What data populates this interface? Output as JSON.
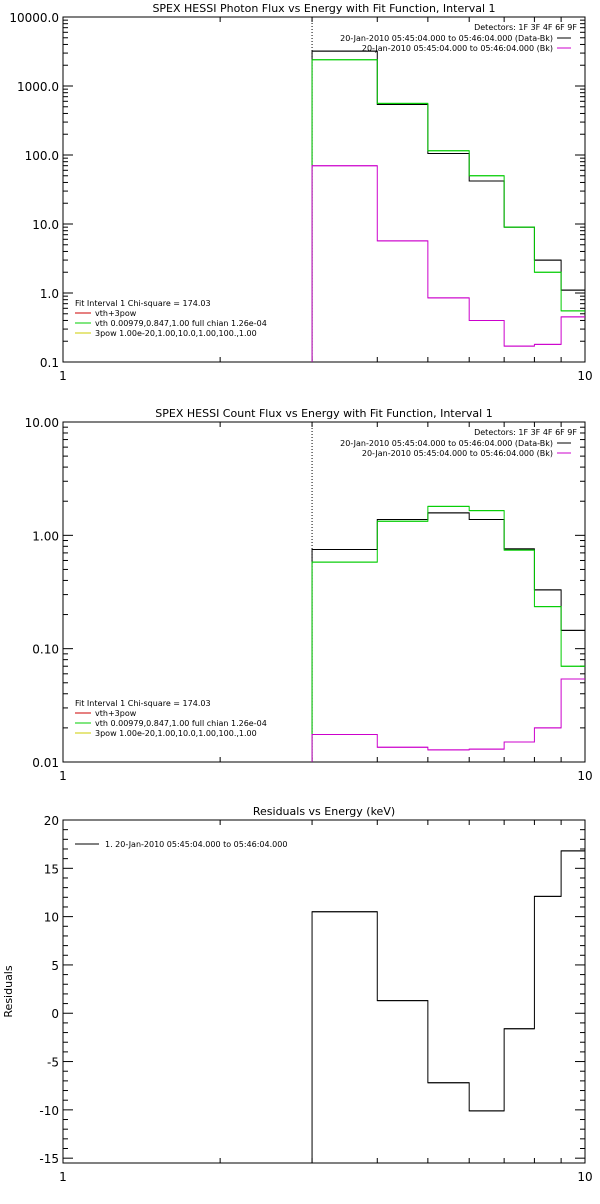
{
  "colors": {
    "data_minus_bk": "#000000",
    "bk": "#cc00cc",
    "fit_total": "#cc0000",
    "vth": "#00cc00",
    "pow": "#cccc00"
  },
  "chart_data": [
    {
      "type": "line",
      "title": "SPEX HESSI Photon Flux vs Energy with Fit Function, Interval 1",
      "xlabel": "",
      "ylabel": "",
      "x_scale": "log",
      "y_scale": "log",
      "xlim": [
        1,
        10
      ],
      "ylim": [
        0.1,
        10000
      ],
      "x_ticks": [
        "1",
        "10"
      ],
      "y_ticks": [
        "0.1",
        "1.0",
        "10.0",
        "100.0",
        "1000.0",
        "10000.0"
      ],
      "vline_x": 3.0,
      "bin_edges": [
        3.0,
        4.0,
        5.0,
        6.0,
        7.0,
        8.0,
        9.0,
        10.0
      ],
      "detectors": "Detectors: 1F 3F 4F 6F 9F",
      "legend": [
        {
          "name": "20-Jan-2010 05:45:04.000 to 05:46:04.000 (Data-Bk)",
          "color": "#000000"
        },
        {
          "name": "20-Jan-2010 05:45:04.000 to 05:46:04.000 (Bk)",
          "color": "#cc00cc"
        }
      ],
      "fit_legend_title": "Fit Interval 1    Chi-square = 174.03",
      "fit_legend": [
        {
          "name": "vth+3pow",
          "color": "#cc0000"
        },
        {
          "name": "vth 0.00979,0.847,1.00  full chian 1.26e-04",
          "color": "#00cc00"
        },
        {
          "name": "3pow 1.00e-20,1.00,10.0,1.00,100.,1.00",
          "color": "#cccc00"
        }
      ],
      "series": [
        {
          "name": "20-Jan-2010 05:45:04.000 to 05:46:04.000 (Data-Bk)",
          "color": "#000000",
          "values": [
            3200,
            540,
            105,
            42,
            9,
            3.0,
            1.1
          ]
        },
        {
          "name": "vth 0.00979,0.847,1.00  full chian 1.26e-04",
          "color": "#00cc00",
          "values": [
            2400,
            560,
            115,
            50,
            9,
            2.0,
            0.55
          ]
        },
        {
          "name": "20-Jan-2010 05:45:04.000 to 05:46:04.000 (Bk)",
          "color": "#cc00cc",
          "values": [
            70,
            5.7,
            0.85,
            0.4,
            0.17,
            0.18,
            0.45
          ]
        }
      ]
    },
    {
      "type": "line",
      "title": "SPEX HESSI Count Flux vs Energy with Fit Function, Interval 1",
      "xlabel": "",
      "ylabel": "",
      "x_scale": "log",
      "y_scale": "log",
      "xlim": [
        1,
        10
      ],
      "ylim": [
        0.01,
        10
      ],
      "x_ticks": [
        "1",
        "10"
      ],
      "y_ticks": [
        "0.01",
        "0.10",
        "1.00",
        "10.00"
      ],
      "vline_x": 3.0,
      "bin_edges": [
        3.0,
        4.0,
        5.0,
        6.0,
        7.0,
        8.0,
        9.0,
        10.0
      ],
      "detectors": "Detectors: 1F 3F 4F 6F 9F",
      "legend": [
        {
          "name": "20-Jan-2010 05:45:04.000 to 05:46:04.000 (Data-Bk)",
          "color": "#000000"
        },
        {
          "name": "20-Jan-2010 05:45:04.000 to 05:46:04.000 (Bk)",
          "color": "#cc00cc"
        }
      ],
      "fit_legend_title": "Fit Interval 1    Chi-square = 174.03",
      "fit_legend": [
        {
          "name": "vth+3pow",
          "color": "#cc0000"
        },
        {
          "name": "vth 0.00979,0.847,1.00  full chian 1.26e-04",
          "color": "#00cc00"
        },
        {
          "name": "3pow 1.00e-20,1.00,10.0,1.00,100.,1.00",
          "color": "#cccc00"
        }
      ],
      "series": [
        {
          "name": "20-Jan-2010 05:45:04.000 to 05:46:04.000 (Data-Bk)",
          "color": "#000000",
          "values": [
            0.75,
            1.38,
            1.58,
            1.38,
            0.76,
            0.33,
            0.145
          ]
        },
        {
          "name": "vth 0.00979,0.847,1.00  full chian 1.26e-04",
          "color": "#00cc00",
          "values": [
            0.58,
            1.33,
            1.8,
            1.65,
            0.74,
            0.235,
            0.07
          ]
        },
        {
          "name": "20-Jan-2010 05:45:04.000 to 05:46:04.000 (Bk)",
          "color": "#cc00cc",
          "values": [
            0.0175,
            0.0135,
            0.0128,
            0.013,
            0.015,
            0.02,
            0.054
          ]
        }
      ]
    },
    {
      "type": "line",
      "title": "Residuals vs Energy (keV)",
      "xlabel": "",
      "ylabel": "Residuals",
      "x_scale": "log",
      "y_scale": "linear",
      "xlim": [
        1,
        10
      ],
      "ylim": [
        -15.5,
        20
      ],
      "x_ticks": [
        "1",
        "10"
      ],
      "y_ticks": [
        "-15",
        "-10",
        "-5",
        "0",
        "5",
        "10",
        "15",
        "20"
      ],
      "bin_edges": [
        3.0,
        4.0,
        5.0,
        6.0,
        7.0,
        8.0,
        9.0,
        10.0
      ],
      "legend": [
        {
          "name": "1. 20-Jan-2010 05:45:04.000 to 05:46:04.000",
          "color": "#000000"
        }
      ],
      "series": [
        {
          "name": "1. 20-Jan-2010 05:45:04.000 to 05:46:04.000",
          "color": "#000000",
          "values": [
            10.5,
            1.3,
            -7.2,
            -10.1,
            -1.6,
            12.1,
            16.8
          ]
        }
      ]
    }
  ]
}
